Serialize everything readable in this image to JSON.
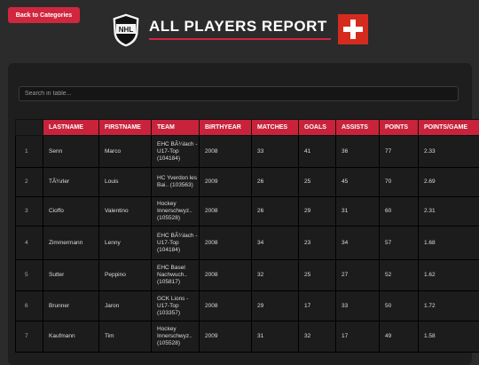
{
  "header": {
    "back_label": "Back to Categories",
    "title": "ALL PLAYERS REPORT",
    "logo_icon": "nhl-shield-icon",
    "flag_icon": "swiss-flag-icon"
  },
  "colors": {
    "accent": "#d0273e",
    "background": "#2b2b2b",
    "panel": "#1e1e1e"
  },
  "search": {
    "placeholder": "Search in table..."
  },
  "table": {
    "columns": [
      "",
      "LASTNAME",
      "FIRSTNAME",
      "TEAM",
      "BIRTHYEAR",
      "MATCHES",
      "GOALS",
      "ASSISTS",
      "POINTS",
      "POINTS/GAME"
    ],
    "rows": [
      {
        "idx": "1",
        "lastname": "Senn",
        "firstname": "Marco",
        "team": "EHC BÃ¼lach - U17-Top (104184)",
        "birthyear": "2008",
        "matches": "33",
        "goals": "41",
        "assists": "36",
        "points": "77",
        "ppg": "2.33"
      },
      {
        "idx": "2",
        "lastname": "TÃ¼rler",
        "firstname": "Louis",
        "team": "HC Yverdon les Bai.. (103563)",
        "birthyear": "2009",
        "matches": "26",
        "goals": "25",
        "assists": "45",
        "points": "70",
        "ppg": "2.69"
      },
      {
        "idx": "3",
        "lastname": "Cioffo",
        "firstname": "Valentino",
        "team": "Hockey Innerschwyz.. (105528)",
        "birthyear": "2008",
        "matches": "26",
        "goals": "29",
        "assists": "31",
        "points": "60",
        "ppg": "2.31"
      },
      {
        "idx": "4",
        "lastname": "Zimmermann",
        "firstname": "Lenny",
        "team": "EHC BÃ¼lach - U17-Top (104184)",
        "birthyear": "2008",
        "matches": "34",
        "goals": "23",
        "assists": "34",
        "points": "57",
        "ppg": "1.68"
      },
      {
        "idx": "5",
        "lastname": "Sutter",
        "firstname": "Peppino",
        "team": "EHC Basel Nachwuch.. (105817)",
        "birthyear": "2008",
        "matches": "32",
        "goals": "25",
        "assists": "27",
        "points": "52",
        "ppg": "1.62"
      },
      {
        "idx": "6",
        "lastname": "Brunner",
        "firstname": "Jaron",
        "team": "GCK Lions - U17-Top (103357)",
        "birthyear": "2008",
        "matches": "29",
        "goals": "17",
        "assists": "33",
        "points": "50",
        "ppg": "1.72"
      },
      {
        "idx": "7",
        "lastname": "Kaufmann",
        "firstname": "Tim",
        "team": "Hockey Innerschwyz.. (105528)",
        "birthyear": "2009",
        "matches": "31",
        "goals": "32",
        "assists": "17",
        "points": "49",
        "ppg": "1.58"
      }
    ]
  }
}
